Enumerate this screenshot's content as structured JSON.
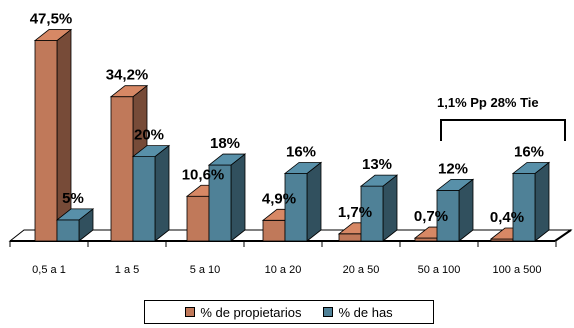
{
  "chart_data": {
    "type": "bar",
    "categories": [
      "0,5 a 1",
      "1 a 5",
      "5 a 10",
      "10 a 20",
      "20 a 50",
      "50 a 100",
      "100 a 500"
    ],
    "series": [
      {
        "name": "% de propietarios",
        "values": [
          47.5,
          34.2,
          10.6,
          4.9,
          1.7,
          0.7,
          0.4
        ],
        "labels": [
          "47,5%",
          "34,2%",
          "10,6%",
          "4,9%",
          "1,7%",
          "0,7%",
          "0,4%"
        ],
        "color": "#c0795a"
      },
      {
        "name": "% de has",
        "values": [
          5,
          20,
          18,
          16,
          13,
          12,
          16
        ],
        "labels": [
          "5%",
          "20%",
          "18%",
          "16%",
          "13%",
          "12%",
          "16%"
        ],
        "color": "#4f8197"
      }
    ],
    "ylim": [
      0,
      50
    ],
    "three_d": true,
    "annotation": "1,1% Pp 28% Tie",
    "legend_position": "bottom"
  },
  "legend": {
    "items": [
      {
        "label": "% de propietarios",
        "color": "#c0795a"
      },
      {
        "label": "% de has",
        "color": "#4f8197"
      }
    ]
  }
}
